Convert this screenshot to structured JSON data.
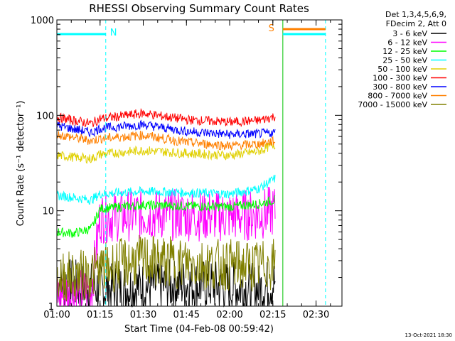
{
  "chart_data": {
    "type": "line",
    "title": "RHESSI Observing Summary Count Rates",
    "xlabel": "Start Time (04-Feb-08 00:59:42)",
    "ylabel": "Count Rate (s⁻¹ detector⁻¹)",
    "yscale": "log",
    "ylim": [
      1,
      1000
    ],
    "xlim": [
      "01:00",
      "02:39"
    ],
    "x_ticks": [
      "01:00",
      "01:15",
      "01:30",
      "01:45",
      "02:00",
      "02:15",
      "02:30"
    ],
    "y_ticks": [
      "1",
      "10",
      "100",
      "1000"
    ],
    "legend": {
      "placement": "right",
      "header": [
        "Det 1,3,4,5,6,9,",
        "FDecim 2, Att 0"
      ]
    },
    "series": [
      {
        "name": "3 - 6 keV",
        "color": "#000000",
        "x": [
          "01:00",
          "01:10",
          "01:18",
          "01:30",
          "01:45",
          "02:00",
          "02:10",
          "02:16"
        ],
        "y": [
          1.8,
          1.6,
          1.5,
          1.6,
          1.7,
          1.6,
          1.5,
          1.8
        ]
      },
      {
        "name": "6 - 12 keV",
        "color": "#ff00ff",
        "x": [
          "01:00",
          "01:10",
          "01:12",
          "01:15",
          "01:30",
          "01:45",
          "02:00",
          "02:10",
          "02:16"
        ],
        "y": [
          1.3,
          1.4,
          1.5,
          8.5,
          9.2,
          9.0,
          8.8,
          9.1,
          10
        ]
      },
      {
        "name": "12 - 25 keV",
        "color": "#00ff00",
        "x": [
          "01:00",
          "01:06",
          "01:12",
          "01:15",
          "01:30",
          "01:45",
          "02:00",
          "02:10",
          "02:16"
        ],
        "y": [
          6.0,
          5.8,
          6.5,
          10.5,
          11.5,
          11.2,
          11.0,
          11.8,
          13
        ]
      },
      {
        "name": "25 - 50 keV",
        "color": "#00ffff",
        "x": [
          "01:00",
          "01:12",
          "01:15",
          "01:30",
          "01:45",
          "02:00",
          "02:10",
          "02:16"
        ],
        "y": [
          14.5,
          13,
          15,
          16,
          15.5,
          15,
          17,
          22
        ]
      },
      {
        "name": "50 - 100 keV",
        "color": "#e0d000",
        "x": [
          "01:00",
          "01:12",
          "01:15",
          "01:30",
          "01:45",
          "02:00",
          "02:10",
          "02:16"
        ],
        "y": [
          38,
          35,
          39,
          43,
          40,
          38,
          42,
          50
        ]
      },
      {
        "name": "100 - 300 keV",
        "color": "#ff0000",
        "x": [
          "01:00",
          "01:12",
          "01:15",
          "01:30",
          "01:45",
          "02:00",
          "02:10",
          "02:16"
        ],
        "y": [
          95,
          82,
          92,
          105,
          90,
          85,
          88,
          98
        ]
      },
      {
        "name": "300 - 800 keV",
        "color": "#0000ff",
        "x": [
          "01:00",
          "01:12",
          "01:15",
          "01:30",
          "01:45",
          "02:00",
          "02:10",
          "02:16"
        ],
        "y": [
          78,
          66,
          73,
          80,
          68,
          63,
          64,
          66
        ]
      },
      {
        "name": "800 - 7000 keV",
        "color": "#ff8000",
        "x": [
          "01:00",
          "01:12",
          "01:15",
          "01:30",
          "01:45",
          "02:00",
          "02:10",
          "02:16"
        ],
        "y": [
          63,
          54,
          57,
          62,
          52,
          48,
          50,
          54
        ]
      },
      {
        "name": "7000 - 15000 keV",
        "color": "#808000",
        "x": [
          "01:00",
          "01:10",
          "01:15",
          "01:25",
          "01:30",
          "01:45",
          "02:00",
          "02:10",
          "02:16"
        ],
        "y": [
          2.0,
          2.1,
          2.4,
          2.9,
          3.0,
          2.8,
          2.7,
          2.6,
          2.8
        ]
      }
    ],
    "annotations": [
      {
        "label": "N",
        "color": "#00ffff",
        "x": "01:15"
      },
      {
        "label": "S",
        "color": "#ff8000",
        "x": "02:16"
      }
    ],
    "footer_timestamp": "13-Oct-2021 18:30"
  }
}
